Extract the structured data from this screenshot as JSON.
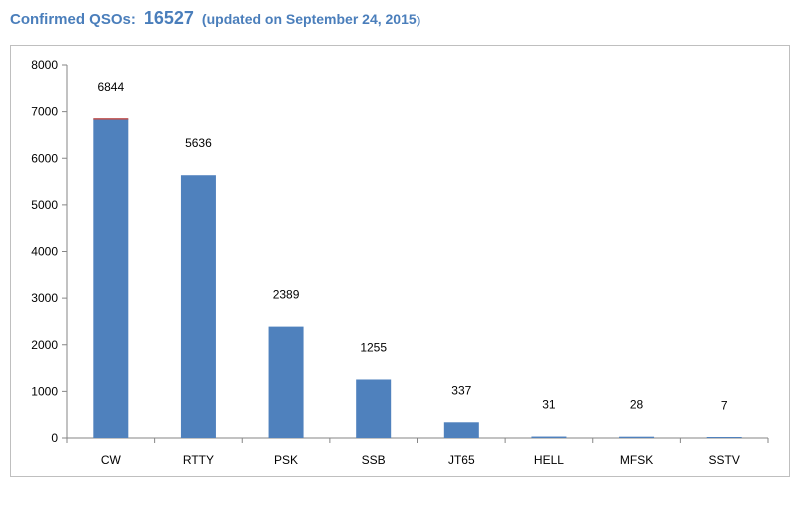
{
  "title": {
    "prefix": "Confirmed QSOs:",
    "total": "16527",
    "updated": "(updated on September 24, 2015",
    "close_paren": ")"
  },
  "colors": {
    "bar": "#4f81bd",
    "title": "#4a7ebb",
    "axis": "#868686",
    "accent_top": "#c0504d"
  },
  "chart_data": {
    "type": "bar",
    "categories": [
      "CW",
      "RTTY",
      "PSK",
      "SSB",
      "JT65",
      "HELL",
      "MFSK",
      "SSTV"
    ],
    "values": [
      6844,
      5636,
      2389,
      1255,
      337,
      31,
      28,
      7
    ],
    "data_labels": [
      "6844",
      "5636",
      "2389",
      "1255",
      "337",
      "31",
      "28",
      "7"
    ],
    "ylim": [
      0,
      8000
    ],
    "yticks": [
      0,
      1000,
      2000,
      3000,
      4000,
      5000,
      6000,
      7000,
      8000
    ],
    "grid": false,
    "legend": "none",
    "xlabel": "",
    "ylabel": ""
  }
}
